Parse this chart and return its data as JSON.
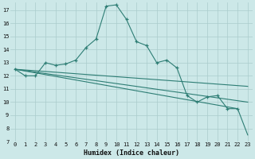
{
  "xlabel": "Humidex (Indice chaleur)",
  "bg_color": "#cce8e8",
  "grid_color": "#aacccc",
  "line_color": "#2d7d74",
  "xlim": [
    -0.5,
    23.5
  ],
  "ylim": [
    7,
    17.6
  ],
  "yticks": [
    7,
    8,
    9,
    10,
    11,
    12,
    13,
    14,
    15,
    16,
    17
  ],
  "xticks": [
    0,
    1,
    2,
    3,
    4,
    5,
    6,
    7,
    8,
    9,
    10,
    11,
    12,
    13,
    14,
    15,
    16,
    17,
    18,
    19,
    20,
    21,
    22,
    23
  ],
  "series": [
    {
      "x": [
        0,
        1,
        2,
        3,
        4,
        5,
        6,
        7,
        8,
        9,
        10,
        11,
        12,
        13,
        14,
        15,
        16,
        17,
        18,
        19,
        20,
        21,
        22
      ],
      "y": [
        12.5,
        12.0,
        12.0,
        13.0,
        12.8,
        12.9,
        13.2,
        14.15,
        14.8,
        17.3,
        17.4,
        16.3,
        14.6,
        14.3,
        13.0,
        13.2,
        12.6,
        10.5,
        10.0,
        10.4,
        10.5,
        9.5,
        9.5
      ],
      "has_markers": true
    },
    {
      "x": [
        0,
        22,
        23
      ],
      "y": [
        12.5,
        9.5,
        7.5
      ],
      "has_markers": false
    },
    {
      "x": [
        0,
        23
      ],
      "y": [
        12.5,
        11.2
      ],
      "has_markers": false
    },
    {
      "x": [
        0,
        23
      ],
      "y": [
        12.5,
        10.0
      ],
      "has_markers": false
    }
  ]
}
